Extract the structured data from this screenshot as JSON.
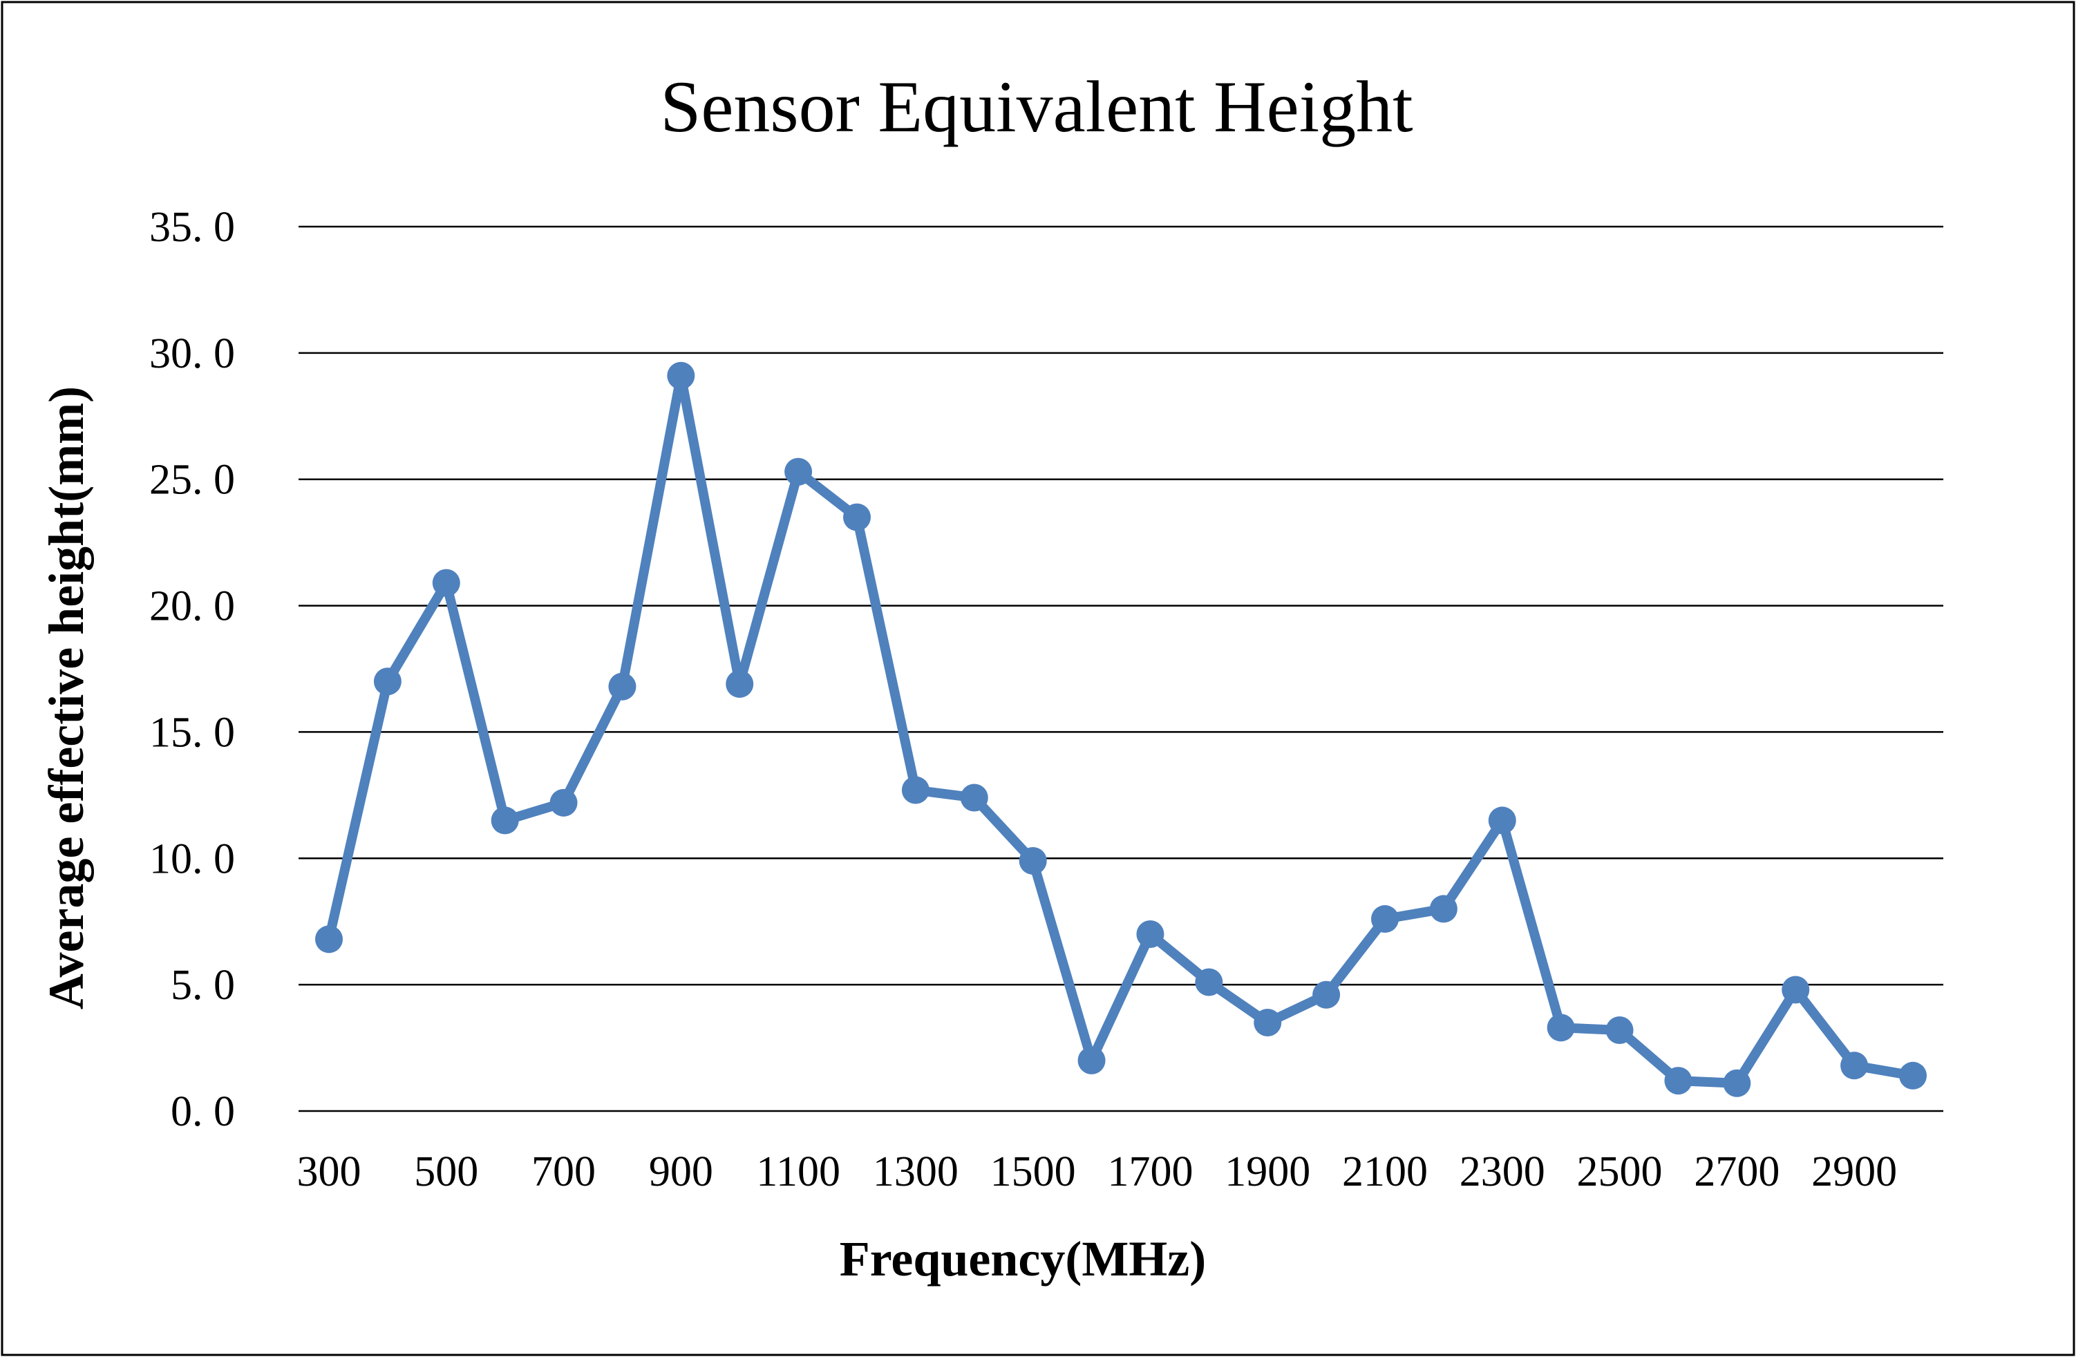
{
  "chart_data": {
    "type": "line",
    "title": "Sensor Equivalent Height",
    "xlabel": "Frequency(MHz)",
    "ylabel": "Average effective height(mm)",
    "ylim": [
      0,
      35
    ],
    "y_ticks": [
      "0. 0",
      "5. 0",
      "10. 0",
      "15. 0",
      "20. 0",
      "25. 0",
      "30. 0",
      "35. 0"
    ],
    "y_tick_values": [
      0,
      5,
      10,
      15,
      20,
      25,
      30,
      35
    ],
    "x_tick_labels": [
      "300",
      "500",
      "700",
      "900",
      "1100",
      "1300",
      "1500",
      "1700",
      "1900",
      "2100",
      "2300",
      "2500",
      "2700",
      "2900"
    ],
    "grid": true,
    "legend": "none",
    "series": [
      {
        "name": "Average effective height",
        "color": "#4f81bd",
        "x": [
          300,
          400,
          500,
          600,
          700,
          800,
          900,
          1000,
          1100,
          1200,
          1300,
          1400,
          1500,
          1600,
          1700,
          1800,
          1900,
          2000,
          2100,
          2200,
          2300,
          2400,
          2500,
          2600,
          2700,
          2800,
          2900,
          3000
        ],
        "values": [
          6.8,
          17.0,
          20.9,
          11.5,
          12.2,
          16.8,
          29.1,
          16.9,
          25.3,
          23.5,
          12.7,
          12.4,
          9.9,
          2.0,
          7.0,
          5.1,
          3.5,
          4.6,
          7.6,
          8.0,
          11.5,
          3.3,
          3.2,
          1.2,
          1.1,
          4.8,
          1.8,
          1.4
        ]
      }
    ]
  }
}
